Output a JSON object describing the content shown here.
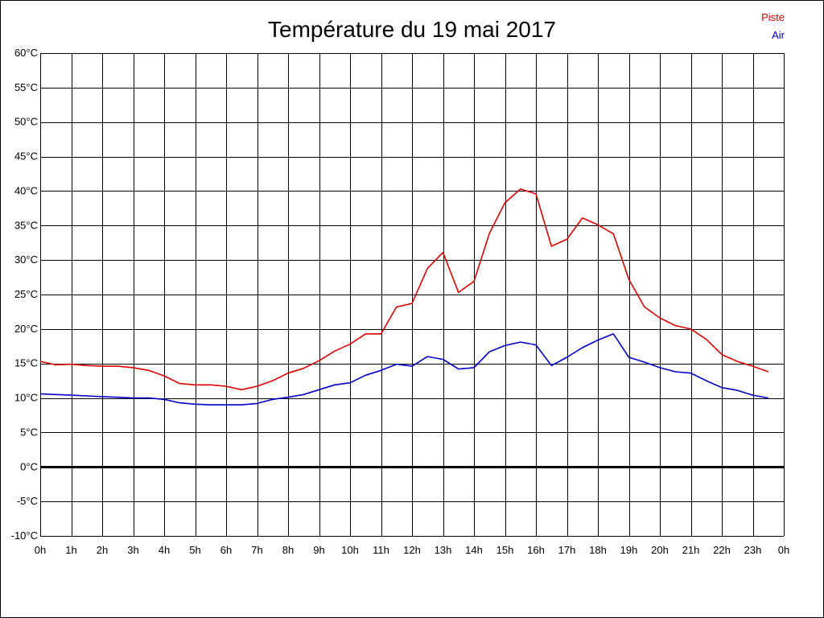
{
  "chart_data": {
    "type": "line",
    "title": "Température du 19 mai 2017",
    "x_ticks": [
      "0h",
      "1h",
      "2h",
      "3h",
      "4h",
      "5h",
      "6h",
      "7h",
      "8h",
      "9h",
      "10h",
      "11h",
      "12h",
      "13h",
      "14h",
      "15h",
      "16h",
      "17h",
      "18h",
      "19h",
      "20h",
      "21h",
      "22h",
      "23h",
      "0h"
    ],
    "y_ticks": [
      "-10°C",
      "-5°C",
      "0°C",
      "5°C",
      "10°C",
      "15°C",
      "20°C",
      "25°C",
      "30°C",
      "35°C",
      "40°C",
      "45°C",
      "50°C",
      "55°C",
      "60°C"
    ],
    "xlim": [
      0,
      24
    ],
    "ylim": [
      -10,
      60
    ],
    "grid": true,
    "legend_position": "top-right",
    "x": [
      0,
      0.5,
      1,
      1.5,
      2,
      2.5,
      3,
      3.5,
      4,
      4.5,
      5,
      5.5,
      6,
      6.5,
      7,
      7.5,
      8,
      8.5,
      9,
      9.5,
      10,
      10.5,
      11,
      11.5,
      12,
      12.5,
      13,
      13.5,
      14,
      14.5,
      15,
      15.5,
      16,
      16.5,
      17,
      17.5,
      18,
      18.5,
      19,
      19.5,
      20,
      20.5,
      21,
      21.5,
      22,
      22.5,
      23,
      23.5
    ],
    "series": [
      {
        "name": "Piste",
        "color": "#dd0000",
        "values": [
          15.3,
          14.8,
          14.9,
          14.7,
          14.6,
          14.6,
          14.4,
          14.0,
          13.2,
          12.1,
          11.9,
          11.9,
          11.7,
          11.2,
          11.7,
          12.5,
          13.6,
          14.3,
          15.4,
          16.8,
          17.8,
          19.3,
          19.3,
          23.2,
          23.7,
          28.8,
          31.1,
          25.3,
          26.9,
          33.9,
          38.3,
          40.3,
          39.6,
          32.0,
          33.0,
          36.1,
          35.1,
          33.8,
          27.2,
          23.2,
          21.6,
          20.5,
          20.0,
          18.5,
          16.3,
          15.3,
          14.6,
          13.8
        ]
      },
      {
        "name": "Air",
        "color": "#0000cc",
        "values": [
          10.6,
          10.5,
          10.4,
          10.3,
          10.2,
          10.1,
          10.0,
          10.0,
          9.8,
          9.3,
          9.1,
          9.0,
          9.0,
          9.0,
          9.2,
          9.8,
          10.1,
          10.5,
          11.2,
          11.9,
          12.2,
          13.3,
          14.0,
          14.9,
          14.6,
          16.0,
          15.6,
          14.2,
          14.4,
          16.7,
          17.6,
          18.1,
          17.7,
          14.7,
          15.9,
          17.3,
          18.4,
          19.3,
          15.9,
          15.2,
          14.4,
          13.8,
          13.6,
          12.5,
          11.5,
          11.1,
          10.4,
          10.0
        ]
      }
    ]
  }
}
